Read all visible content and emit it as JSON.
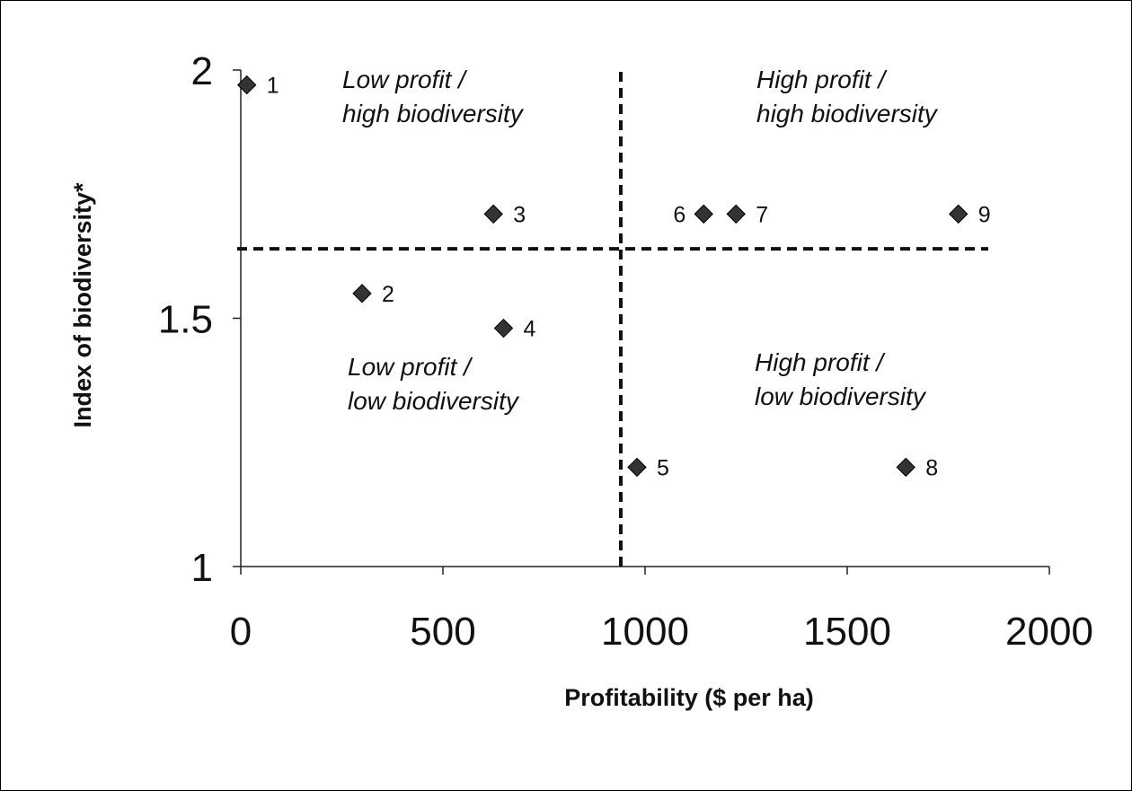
{
  "chart_data": {
    "type": "scatter",
    "xlabel": "Profitability ($ per ha)",
    "ylabel": "Index of biodiversity*",
    "xlim": [
      0,
      2000
    ],
    "ylim": [
      1,
      2
    ],
    "xticks": [
      0,
      500,
      1000,
      1500,
      2000
    ],
    "yticks": [
      1,
      1.5,
      2
    ],
    "x_tick_labels": [
      "0",
      "500",
      "1000",
      "1500",
      "2000"
    ],
    "y_tick_labels": [
      "1",
      "1.5",
      "2"
    ],
    "grid": false,
    "marker": "diamond",
    "marker_color": "#333333",
    "points": [
      {
        "label": "1",
        "x": 15,
        "y": 1.97
      },
      {
        "label": "2",
        "x": 300,
        "y": 1.55
      },
      {
        "label": "3",
        "x": 625,
        "y": 1.71
      },
      {
        "label": "4",
        "x": 650,
        "y": 1.48
      },
      {
        "label": "5",
        "x": 980,
        "y": 1.2
      },
      {
        "label": "6",
        "x": 1145,
        "y": 1.71
      },
      {
        "label": "7",
        "x": 1225,
        "y": 1.71
      },
      {
        "label": "8",
        "x": 1645,
        "y": 1.2
      },
      {
        "label": "9",
        "x": 1775,
        "y": 1.71
      }
    ],
    "threshold_lines": {
      "vertical_x": 940,
      "horizontal_y": 1.64,
      "style": "dashed"
    },
    "quadrant_labels": [
      {
        "position": "top-left",
        "line1": "Low profit /",
        "line2": "high biodiversity"
      },
      {
        "position": "top-right",
        "line1": "High profit /",
        "line2": "high biodiversity"
      },
      {
        "position": "bottom-left",
        "line1": "Low profit /",
        "line2": "low biodiversity"
      },
      {
        "position": "bottom-right",
        "line1": "High profit /",
        "line2": "low biodiversity"
      }
    ]
  }
}
